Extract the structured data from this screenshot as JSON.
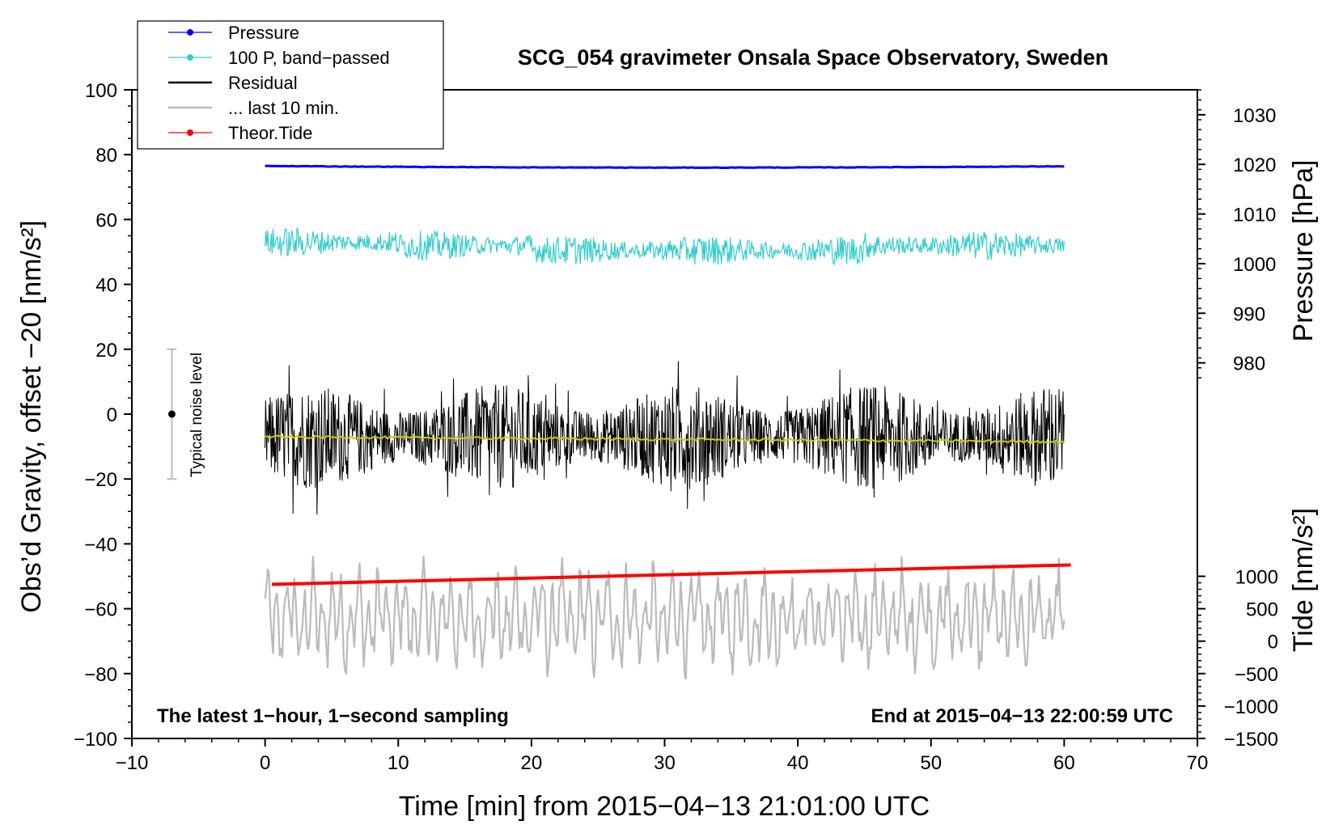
{
  "chart_data": {
    "type": "line",
    "title": "SCG_054 gravimeter Onsala Space Observatory, Sweden",
    "xlabel": "Time [min] from 2015−04−13 21:01:00 UTC",
    "ylabel_left": "Obs’d Gravity, offset −20 [nm/s²]",
    "ylabel_right_pressure": "Pressure [hPa]",
    "ylabel_right_tide": "Tide [nm/s²]",
    "xlim": [
      -10,
      70
    ],
    "ylim_left": [
      -100,
      100
    ],
    "x_ticks": [
      -10,
      0,
      10,
      20,
      30,
      40,
      50,
      60,
      70
    ],
    "x_tick_labels": [
      "−10",
      "0",
      "10",
      "20",
      "30",
      "40",
      "50",
      "60",
      "70"
    ],
    "y_ticks_left": [
      100,
      80,
      60,
      40,
      20,
      0,
      -20,
      -40,
      -60,
      -80,
      -100
    ],
    "y_tick_labels_left": [
      "100",
      "80",
      "60",
      "40",
      "20",
      "0",
      "−20",
      "−40",
      "−60",
      "−80",
      "−100"
    ],
    "pressure_ticks": [
      1030,
      1020,
      1010,
      1000,
      990,
      980
    ],
    "pressure_tick_labels": [
      "1030",
      "1020",
      "1010",
      "1000",
      "990",
      "980"
    ],
    "pressure_scale": {
      "hpa_ref": 1000,
      "left_at_ref": 46.4,
      "left_per_hpa": 1.53
    },
    "tide_ticks": [
      1000,
      500,
      0,
      -500,
      -1000,
      -1500
    ],
    "tide_tick_labels": [
      "1000",
      "500",
      "0",
      "−500",
      "−1000",
      "−1500"
    ],
    "tide_scale": {
      "tide_at_bottom": -1500,
      "tide_per_left_unit": 50
    },
    "annotations": {
      "bottom_left": "The latest 1−hour, 1−second sampling",
      "bottom_right": "End at 2015−04−13 22:00:59 UTC",
      "noise_label": "Typical noise level"
    },
    "noise_bar": {
      "x": -7,
      "center": 0,
      "low": -20,
      "high": 20
    },
    "legend": {
      "position": "top-left",
      "entries": [
        {
          "label": "Pressure",
          "color": "#0000ff",
          "marker": true
        },
        {
          "label": "100 P, band−passed",
          "color": "#33cccc",
          "marker": true
        },
        {
          "label": "Residual",
          "color": "#000000",
          "marker": false
        },
        {
          "label": "... last 10 min.",
          "color": "#bbbbbb",
          "marker": false
        },
        {
          "label": "Theor.Tide",
          "color": "#ff0000",
          "marker": true
        }
      ]
    },
    "series": [
      {
        "name": "Pressure",
        "color": "#0000ff",
        "x_range": [
          0,
          60
        ],
        "y_start": 76.5,
        "y_end": 76.4,
        "y_dip": 76.0,
        "noise": 0.15
      },
      {
        "name": "100 P, band−passed",
        "color": "#33cccc",
        "x_range": [
          0,
          60
        ],
        "center": 52,
        "amplitude": 3.5
      },
      {
        "name": "Residual",
        "color": "#000000",
        "x_range": [
          0,
          60
        ],
        "center": -7,
        "amplitude": 12
      },
      {
        "name": "Residual smoothed",
        "color": "#cccc00",
        "x_range": [
          0,
          60
        ],
        "y_start": -7,
        "y_end": -8.5
      },
      {
        "name": "... last 10 min.",
        "color": "#bbbbbb",
        "x_range": [
          0,
          60
        ],
        "center": -63,
        "amplitude": 10
      },
      {
        "name": "Theor.Tide",
        "color": "#ff0000",
        "x_range": [
          0,
          60.5
        ],
        "y_start": -52.5,
        "y_end": -46.5
      }
    ]
  }
}
